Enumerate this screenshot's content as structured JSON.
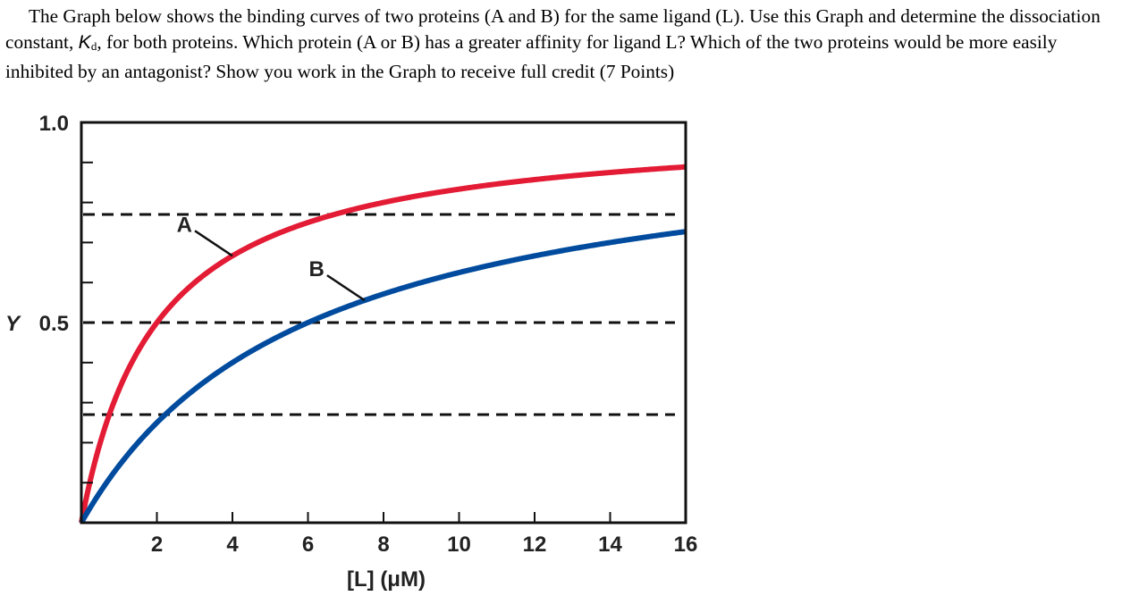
{
  "question": {
    "part1": "The Graph below shows the binding curves of two proteins (A and B) for the same ligand (L). Use this Graph and determine the dissociation constant, ",
    "kd_symbol": "K",
    "kd_subscript": "d",
    "part2": ", for both proteins. Which protein (A or B) has a greater affinity for ligand L? Which of the two proteins would be more easily inhibited by an antagonist? Show you work in the Graph to receive full credit (7 Points)"
  },
  "chart_data": {
    "type": "line",
    "xlabel": "[L] (μM)",
    "ylabel": "Y",
    "xlim": [
      0,
      16
    ],
    "ylim": [
      0,
      1.0
    ],
    "x_ticks": [
      2,
      4,
      6,
      8,
      10,
      12,
      14,
      16
    ],
    "y_tick_labels": [
      {
        "value": 1.0,
        "label": "1.0"
      },
      {
        "value": 0.5,
        "label": "0.5"
      }
    ],
    "y_minor_ticks": [
      0.2,
      0.4,
      0.6,
      0.8,
      0.9,
      0.7,
      0.3,
      0.1
    ],
    "grid": false,
    "reference_lines": [
      {
        "y": 0.77,
        "style": "dashed"
      },
      {
        "y": 0.5,
        "style": "dashed"
      },
      {
        "y": 0.27,
        "style": "dashed"
      }
    ],
    "series": [
      {
        "name": "A",
        "color": "#e31b34",
        "kd": 2,
        "annotation_x": 4.0
      },
      {
        "name": "B",
        "color": "#004b9e",
        "kd": 6,
        "annotation_x": 7.5
      }
    ]
  }
}
